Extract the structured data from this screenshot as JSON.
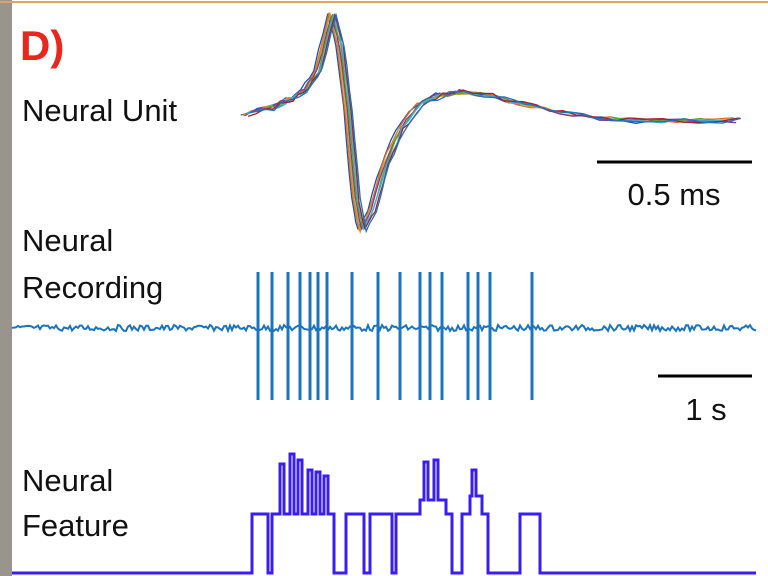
{
  "panel": "D)",
  "labels": {
    "unit": "Neural Unit",
    "recording": [
      "Neural",
      "Recording"
    ],
    "feature": [
      "Neural",
      "Feature"
    ]
  },
  "scale_bars": {
    "unit": "0.5 ms",
    "recording": "1 s"
  }
}
